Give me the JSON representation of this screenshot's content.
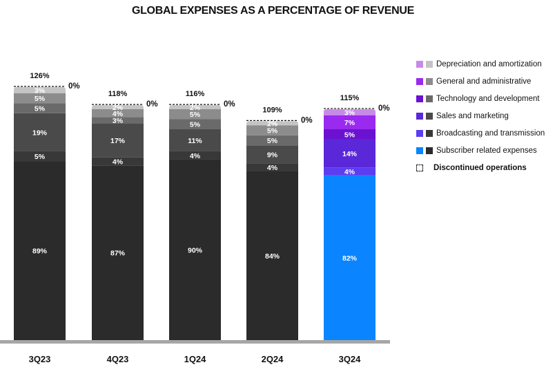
{
  "chart_data": {
    "type": "bar",
    "stacked": true,
    "title": "GLOBAL EXPENSES AS A PERCENTAGE OF REVENUE",
    "categories": [
      "3Q23",
      "4Q23",
      "1Q24",
      "2Q24",
      "3Q24"
    ],
    "totals": [
      "126%",
      "118%",
      "116%",
      "109%",
      "115%"
    ],
    "discontinued_labels": [
      "0%",
      "0%",
      "0%",
      "0%",
      "0%"
    ],
    "series": [
      {
        "name": "Subscriber related expenses",
        "values": [
          89,
          87,
          90,
          84,
          82
        ],
        "labels": [
          "89%",
          "87%",
          "90%",
          "84%",
          "82%"
        ]
      },
      {
        "name": "Broadcasting and transmission",
        "values": [
          5,
          4,
          4,
          4,
          4
        ],
        "labels": [
          "5%",
          "4%",
          "4%",
          "4%",
          "4%"
        ]
      },
      {
        "name": "Sales and marketing",
        "values": [
          19,
          17,
          11,
          9,
          14
        ],
        "labels": [
          "19%",
          "17%",
          "11%",
          "9%",
          "14%"
        ]
      },
      {
        "name": "Technology and development",
        "values": [
          5,
          3,
          5,
          5,
          5
        ],
        "labels": [
          "5%",
          "3%",
          "5%",
          "5%",
          "5%"
        ]
      },
      {
        "name": "General and administrative",
        "values": [
          5,
          4,
          5,
          5,
          7
        ],
        "labels": [
          "5%",
          "4%",
          "5%",
          "5%",
          "7%"
        ]
      },
      {
        "name": "Depreciation and amortization",
        "values": [
          3,
          2,
          2,
          2,
          3
        ],
        "labels": [
          "3%",
          "2%",
          "2%",
          "2%",
          "3%"
        ]
      },
      {
        "name": "Discontinued operations",
        "values": [
          0,
          0,
          0,
          0,
          0
        ],
        "labels": [
          "0%",
          "0%",
          "0%",
          "0%",
          "0%"
        ]
      }
    ],
    "ylim": [
      0,
      126
    ],
    "legend_position": "right",
    "colors": {
      "gray": [
        "#2b2b2b",
        "#383838",
        "#4a4a4a",
        "#6a6a6a",
        "#8c8c8c",
        "#c4c4c4"
      ],
      "highlight": [
        "#0a84ff",
        "#5b3df2",
        "#5a28d8",
        "#6a12d0",
        "#9a2af0",
        "#c88ae8"
      ],
      "axis": "#a6a6a6"
    },
    "legend": [
      {
        "label": "Depreciation and amortization",
        "color": "#c88ae8",
        "gray": "#c4c4c4"
      },
      {
        "label": "General and administrative",
        "color": "#9a2af0",
        "gray": "#8c8c8c"
      },
      {
        "label": "Technology and development",
        "color": "#6a12d0",
        "gray": "#6a6a6a"
      },
      {
        "label": "Sales and marketing",
        "color": "#5a28d8",
        "gray": "#4a4a4a"
      },
      {
        "label": "Broadcasting and transmission",
        "color": "#5b3df2",
        "gray": "#383838"
      },
      {
        "label": "Subscriber related expenses",
        "color": "#0a84ff",
        "gray": "#2b2b2b"
      },
      {
        "label": "Discontinued operations",
        "dashed": true
      }
    ]
  }
}
